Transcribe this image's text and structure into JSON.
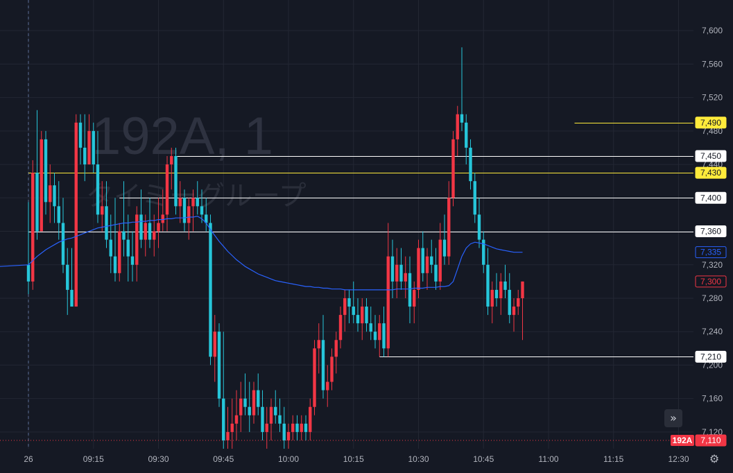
{
  "symbol": "192A",
  "watermark": {
    "line1": "192A, 1",
    "line2": "タイミーグループ"
  },
  "colors": {
    "background": "#151924",
    "grid": "#232733",
    "up": "#f23645",
    "down": "#22ab94",
    "down_body": "#26c6da",
    "vwap": "#2962ff",
    "highlight": "#ffeb3b",
    "white_line": "#ffffff",
    "axis_text": "#b2b5be"
  },
  "icons": {
    "scroll": "double-chevron-right-icon",
    "settings": "gear-icon"
  },
  "chart_data": {
    "type": "candlestick",
    "interval_minutes": 1,
    "ylim": [
      7100,
      7630
    ],
    "y_ticks": [
      "7,600",
      "7,560",
      "7,520",
      "7,480",
      "7,440",
      "7,400",
      "7,360",
      "7,320",
      "7,280",
      "7,240",
      "7,200",
      "7,160",
      "7,120"
    ],
    "x_ticks": [
      "26",
      "09:15",
      "09:30",
      "09:45",
      "10:00",
      "10:15",
      "10:30",
      "10:45",
      "11:00",
      "11:15",
      "12:30"
    ],
    "x_tick_bars": [
      0,
      15,
      30,
      45,
      60,
      75,
      90,
      105,
      120,
      135,
      150
    ],
    "horizontal_lines": [
      {
        "price": 7490,
        "label": "7,490",
        "style": "yellow",
        "start_bar": 126
      },
      {
        "price": 7450,
        "label": "7,450",
        "style": "white",
        "start_bar": 34
      },
      {
        "price": 7430,
        "label": "7,430",
        "style": "yellow",
        "start_bar": 0
      },
      {
        "price": 7400,
        "label": "7,400",
        "style": "white",
        "start_bar": 21
      },
      {
        "price": 7360,
        "label": "7,360",
        "style": "white",
        "start_bar": 0
      },
      {
        "price": 7210,
        "label": "7,210",
        "style": "white",
        "start_bar": 81
      }
    ],
    "price_tags": [
      {
        "price": 7335,
        "label": "7,335",
        "style": "vwap"
      },
      {
        "price": 7300,
        "label": "7,300",
        "style": "last"
      },
      {
        "price": 7110,
        "label": "7,110",
        "style": "symbol",
        "symbol_label": "192A"
      }
    ],
    "series": [
      {
        "name": "192A",
        "ohlc": [
          [
            7320,
            7395,
            7285,
            7300
          ],
          [
            7300,
            7445,
            7290,
            7430
          ],
          [
            7430,
            7505,
            7350,
            7360
          ],
          [
            7360,
            7480,
            7360,
            7470
          ],
          [
            7470,
            7480,
            7380,
            7395
          ],
          [
            7395,
            7440,
            7370,
            7415
          ],
          [
            7415,
            7430,
            7370,
            7390
          ],
          [
            7390,
            7420,
            7350,
            7370
          ],
          [
            7370,
            7400,
            7310,
            7320
          ],
          [
            7320,
            7340,
            7260,
            7290
          ],
          [
            7290,
            7340,
            7270,
            7270
          ],
          [
            7270,
            7500,
            7270,
            7490
          ],
          [
            7490,
            7500,
            7440,
            7460
          ],
          [
            7460,
            7500,
            7420,
            7440
          ],
          [
            7440,
            7500,
            7440,
            7480
          ],
          [
            7480,
            7490,
            7430,
            7440
          ],
          [
            7440,
            7480,
            7370,
            7380
          ],
          [
            7380,
            7420,
            7360,
            7390
          ],
          [
            7390,
            7420,
            7340,
            7350
          ],
          [
            7350,
            7380,
            7310,
            7330
          ],
          [
            7330,
            7400,
            7300,
            7310
          ],
          [
            7310,
            7370,
            7300,
            7360
          ],
          [
            7360,
            7420,
            7330,
            7350
          ],
          [
            7350,
            7380,
            7300,
            7330
          ],
          [
            7330,
            7360,
            7300,
            7320
          ],
          [
            7320,
            7390,
            7300,
            7380
          ],
          [
            7380,
            7410,
            7340,
            7350
          ],
          [
            7350,
            7380,
            7330,
            7370
          ],
          [
            7370,
            7400,
            7340,
            7350
          ],
          [
            7350,
            7380,
            7330,
            7360
          ],
          [
            7360,
            7400,
            7340,
            7370
          ],
          [
            7370,
            7410,
            7360,
            7380
          ],
          [
            7380,
            7450,
            7360,
            7440
          ],
          [
            7440,
            7460,
            7410,
            7450
          ],
          [
            7450,
            7460,
            7380,
            7390
          ],
          [
            7390,
            7420,
            7370,
            7400
          ],
          [
            7400,
            7410,
            7360,
            7370
          ],
          [
            7370,
            7400,
            7350,
            7390
          ],
          [
            7390,
            7410,
            7360,
            7400
          ],
          [
            7400,
            7420,
            7380,
            7390
          ],
          [
            7390,
            7410,
            7370,
            7380
          ],
          [
            7380,
            7400,
            7360,
            7370
          ],
          [
            7370,
            7380,
            7200,
            7210
          ],
          [
            7210,
            7260,
            7180,
            7240
          ],
          [
            7240,
            7250,
            7150,
            7160
          ],
          [
            7160,
            7240,
            7100,
            7110
          ],
          [
            7110,
            7150,
            7100,
            7120
          ],
          [
            7120,
            7160,
            7100,
            7130
          ],
          [
            7130,
            7170,
            7110,
            7140
          ],
          [
            7140,
            7180,
            7120,
            7160
          ],
          [
            7160,
            7190,
            7140,
            7150
          ],
          [
            7150,
            7180,
            7120,
            7140
          ],
          [
            7140,
            7180,
            7130,
            7170
          ],
          [
            7170,
            7190,
            7140,
            7150
          ],
          [
            7150,
            7170,
            7110,
            7120
          ],
          [
            7120,
            7150,
            7100,
            7130
          ],
          [
            7130,
            7160,
            7110,
            7150
          ],
          [
            7150,
            7170,
            7130,
            7140
          ],
          [
            7140,
            7160,
            7120,
            7130
          ],
          [
            7130,
            7150,
            7100,
            7110
          ],
          [
            7110,
            7130,
            7100,
            7120
          ],
          [
            7120,
            7140,
            7110,
            7130
          ],
          [
            7130,
            7140,
            7110,
            7120
          ],
          [
            7120,
            7140,
            7110,
            7130
          ],
          [
            7130,
            7140,
            7110,
            7120
          ],
          [
            7120,
            7160,
            7110,
            7150
          ],
          [
            7150,
            7230,
            7140,
            7220
          ],
          [
            7220,
            7250,
            7190,
            7230
          ],
          [
            7230,
            7260,
            7160,
            7170
          ],
          [
            7170,
            7200,
            7150,
            7180
          ],
          [
            7180,
            7220,
            7170,
            7210
          ],
          [
            7210,
            7240,
            7190,
            7230
          ],
          [
            7230,
            7270,
            7220,
            7260
          ],
          [
            7260,
            7290,
            7240,
            7280
          ],
          [
            7280,
            7290,
            7250,
            7270
          ],
          [
            7270,
            7300,
            7250,
            7260
          ],
          [
            7260,
            7280,
            7240,
            7250
          ],
          [
            7250,
            7280,
            7230,
            7270
          ],
          [
            7270,
            7280,
            7240,
            7250
          ],
          [
            7250,
            7270,
            7230,
            7240
          ],
          [
            7240,
            7260,
            7220,
            7230
          ],
          [
            7230,
            7260,
            7210,
            7250
          ],
          [
            7250,
            7270,
            7210,
            7220
          ],
          [
            7220,
            7370,
            7210,
            7330
          ],
          [
            7330,
            7350,
            7280,
            7300
          ],
          [
            7300,
            7340,
            7280,
            7320
          ],
          [
            7320,
            7340,
            7290,
            7300
          ],
          [
            7300,
            7330,
            7280,
            7310
          ],
          [
            7310,
            7330,
            7250,
            7270
          ],
          [
            7270,
            7300,
            7250,
            7290
          ],
          [
            7290,
            7350,
            7280,
            7340
          ],
          [
            7340,
            7360,
            7300,
            7310
          ],
          [
            7310,
            7340,
            7290,
            7330
          ],
          [
            7330,
            7350,
            7310,
            7320
          ],
          [
            7320,
            7340,
            7290,
            7300
          ],
          [
            7300,
            7370,
            7290,
            7350
          ],
          [
            7350,
            7380,
            7320,
            7330
          ],
          [
            7330,
            7420,
            7320,
            7400
          ],
          [
            7400,
            7480,
            7390,
            7470
          ],
          [
            7470,
            7510,
            7450,
            7500
          ],
          [
            7500,
            7580,
            7480,
            7490
          ],
          [
            7490,
            7500,
            7440,
            7460
          ],
          [
            7460,
            7470,
            7410,
            7420
          ],
          [
            7420,
            7430,
            7370,
            7380
          ],
          [
            7380,
            7400,
            7340,
            7350
          ],
          [
            7350,
            7360,
            7310,
            7320
          ],
          [
            7320,
            7340,
            7260,
            7270
          ],
          [
            7270,
            7300,
            7250,
            7290
          ],
          [
            7290,
            7310,
            7270,
            7280
          ],
          [
            7280,
            7310,
            7260,
            7300
          ],
          [
            7300,
            7320,
            7280,
            7290
          ],
          [
            7290,
            7310,
            7250,
            7260
          ],
          [
            7260,
            7280,
            7240,
            7270
          ],
          [
            7270,
            7290,
            7260,
            7280
          ],
          [
            7280,
            7300,
            7230,
            7300
          ]
        ]
      },
      {
        "name": "VWAP",
        "values": [
          7320,
          7325,
          7330,
          7334,
          7338,
          7341,
          7344,
          7347,
          7349,
          7351,
          7352,
          7354,
          7356,
          7358,
          7360,
          7362,
          7364,
          7365,
          7366,
          7367,
          7368,
          7369,
          7370,
          7370,
          7371,
          7371,
          7372,
          7372,
          7373,
          7373,
          7374,
          7374,
          7375,
          7375,
          7376,
          7376,
          7376,
          7377,
          7377,
          7378,
          7375,
          7370,
          7362,
          7355,
          7348,
          7342,
          7336,
          7331,
          7326,
          7322,
          7318,
          7315,
          7312,
          7309,
          7307,
          7305,
          7303,
          7301,
          7300,
          7299,
          7298,
          7297,
          7296,
          7295,
          7294,
          7294,
          7293,
          7293,
          7292,
          7292,
          7291,
          7291,
          7291,
          7290,
          7290,
          7290,
          7290,
          7290,
          7290,
          7290,
          7290,
          7290,
          7290,
          7290,
          7290,
          7291,
          7291,
          7291,
          7291,
          7292,
          7292,
          7292,
          7293,
          7293,
          7293,
          7294,
          7294,
          7295,
          7300,
          7315,
          7330,
          7340,
          7345,
          7347,
          7346,
          7345,
          7343,
          7341,
          7339,
          7338,
          7337,
          7336,
          7335,
          7335,
          7335
        ]
      }
    ]
  }
}
